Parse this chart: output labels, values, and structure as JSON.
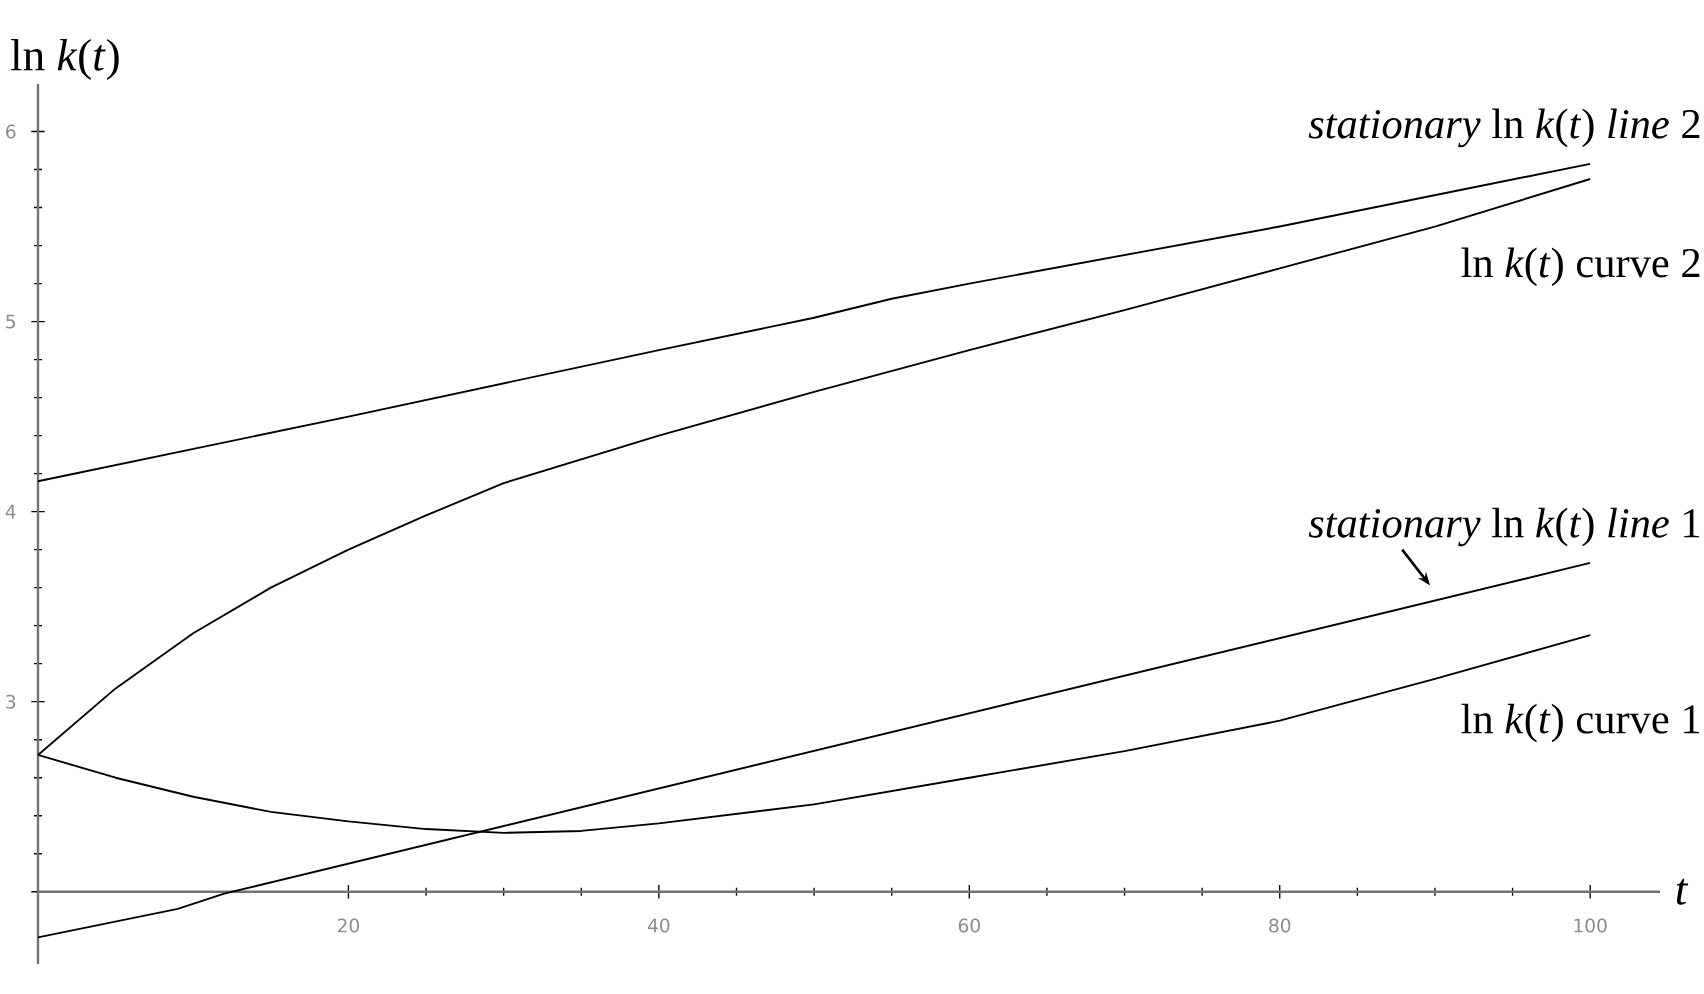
{
  "chart_data": {
    "type": "line",
    "xlabel": "*t*",
    "ylabel": "ln *k*(*t*)",
    "xlim": [
      0,
      104.5
    ],
    "ylim": [
      1.62,
      6.25
    ],
    "xticks": [
      20,
      40,
      60,
      80,
      100
    ],
    "yticks": [
      {
        "value": 2,
        "label": null
      },
      3,
      4,
      5,
      6
    ],
    "marker": "none",
    "line_style": "solid",
    "series": [
      {
        "name": "*stationary* ln *k*(*t*) *line* 2",
        "color": "#000000",
        "x": [
          0,
          20,
          40,
          50,
          55,
          60,
          80,
          100
        ],
        "values": [
          4.16,
          4.5,
          4.85,
          5.02,
          5.12,
          5.2,
          5.5,
          5.83
        ]
      },
      {
        "name": "ln *k*(*t*) curve 2",
        "color": "#000000",
        "x": [
          0,
          5,
          10,
          15,
          20,
          25,
          30,
          40,
          50,
          60,
          70,
          80,
          90,
          100
        ],
        "values": [
          2.72,
          3.07,
          3.36,
          3.6,
          3.8,
          3.98,
          4.15,
          4.4,
          4.63,
          4.85,
          5.06,
          5.28,
          5.5,
          5.75
        ]
      },
      {
        "name": "*stationary* ln *k*(*t*) *line* 1",
        "color": "#000000",
        "x": [
          0,
          9,
          12,
          100
        ],
        "values": [
          1.76,
          1.91,
          1.99,
          3.73
        ]
      },
      {
        "name": "ln *k*(*t*) curve 1",
        "color": "#000000",
        "x": [
          0,
          5,
          10,
          15,
          20,
          25,
          30,
          35,
          40,
          50,
          60,
          70,
          80,
          90,
          100
        ],
        "values": [
          2.72,
          2.6,
          2.5,
          2.42,
          2.37,
          2.33,
          2.31,
          2.32,
          2.36,
          2.46,
          2.6,
          2.74,
          2.9,
          3.12,
          3.35
        ]
      }
    ]
  }
}
